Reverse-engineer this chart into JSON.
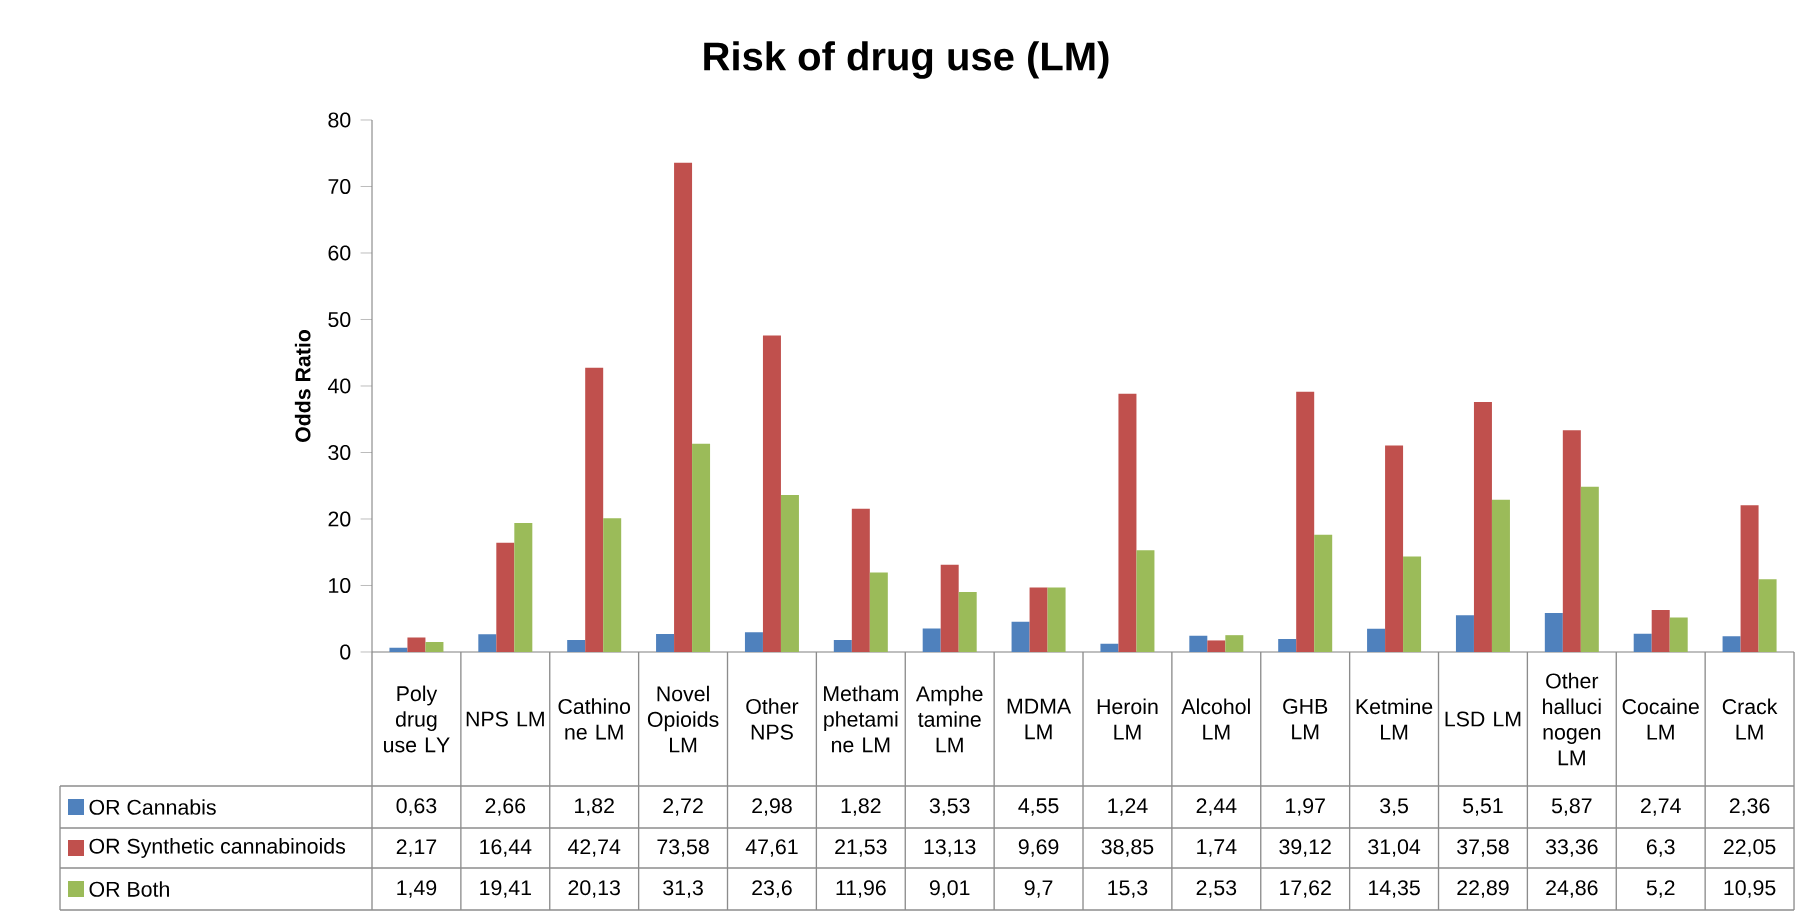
{
  "chart_data": {
    "type": "bar",
    "title": "Risk of drug use (LM)",
    "ylabel": "Odds Ratio",
    "categories": [
      "Polydrug use LY",
      "NPS LM",
      "Cathinone LM",
      "Novel Opioids LM",
      "Other NPS",
      "Methamphetamine LM",
      "Amphetamine LM",
      "MDMA LM",
      "Heroin LM",
      "Alcohol LM",
      "GHB LM",
      "Ketmine LM",
      "LSD LM",
      "Other hallucinogen LM",
      "Cocaine LM",
      "Crack LM"
    ],
    "series": [
      {
        "name": "OR Cannabis",
        "color": "#4f81bd",
        "values": [
          0.63,
          2.66,
          1.82,
          2.72,
          2.98,
          1.82,
          3.53,
          4.55,
          1.24,
          2.44,
          1.97,
          3.5,
          5.51,
          5.87,
          2.74,
          2.36
        ],
        "value_labels": [
          "0,63",
          "2,66",
          "1,82",
          "2,72",
          "2,98",
          "1,82",
          "3,53",
          "4,55",
          "1,24",
          "2,44",
          "1,97",
          "3,5",
          "5,51",
          "5,87",
          "2,74",
          "2,36"
        ]
      },
      {
        "name": "OR Synthetic cannabinoids",
        "color": "#c0504d",
        "values": [
          2.17,
          16.44,
          42.74,
          73.58,
          47.61,
          21.53,
          13.13,
          9.69,
          38.85,
          1.74,
          39.12,
          31.04,
          37.58,
          33.36,
          6.3,
          22.05
        ],
        "value_labels": [
          "2,17",
          "16,44",
          "42,74",
          "73,58",
          "47,61",
          "21,53",
          "13,13",
          "9,69",
          "38,85",
          "1,74",
          "39,12",
          "31,04",
          "37,58",
          "33,36",
          "6,3",
          "22,05"
        ]
      },
      {
        "name": "OR Both",
        "color": "#9bbb59",
        "values": [
          1.49,
          19.41,
          20.13,
          31.3,
          23.6,
          11.96,
          9.01,
          9.7,
          15.3,
          2.53,
          17.62,
          14.35,
          22.89,
          24.86,
          5.2,
          10.95
        ],
        "value_labels": [
          "1,49",
          "19,41",
          "20,13",
          "31,3",
          "23,6",
          "11,96",
          "9,01",
          "9,7",
          "15,3",
          "2,53",
          "17,62",
          "14,35",
          "22,89",
          "24,86",
          "5,2",
          "10,95"
        ]
      }
    ],
    "ylim": [
      0,
      80
    ],
    "yticks": [
      0,
      10,
      20,
      30,
      40,
      50,
      60,
      70,
      80
    ],
    "legend": "bottom"
  }
}
